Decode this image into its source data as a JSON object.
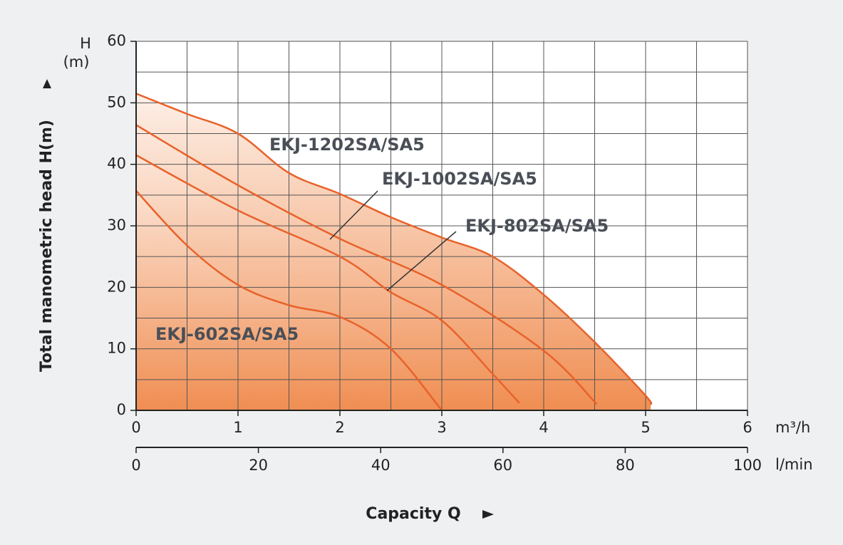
{
  "chart_data": {
    "type": "line",
    "y_unit_symbol": "H",
    "y_unit": "(m)",
    "y_axis_label": "Total manometric head H(m)",
    "x_axis_label": "Capacity Q",
    "x_unit": "m³/h",
    "x2_unit": "l/min",
    "xlim": [
      0,
      6
    ],
    "xticks": [
      0,
      1,
      2,
      3,
      4,
      5,
      6
    ],
    "minor_xticks": [
      0.5,
      1.5,
      2.5,
      3.5,
      4.5,
      5.5
    ],
    "x2lim": [
      0,
      100
    ],
    "x2ticks": [
      0,
      20,
      40,
      60,
      80,
      100
    ],
    "ylim": [
      0,
      60
    ],
    "yticks": [
      0,
      10,
      20,
      30,
      40,
      50,
      60
    ],
    "minor_yticks": [
      5,
      15,
      25,
      35,
      45,
      55
    ],
    "grid": true,
    "series": [
      {
        "name": "EKJ-1202SA/SA5",
        "color": "#e8622a",
        "x": [
          0,
          0.5,
          1,
          1.5,
          2,
          2.5,
          3,
          3.5,
          4,
          4.5,
          5,
          5.05
        ],
        "values": [
          51.5,
          48.2,
          45,
          38.6,
          35.2,
          31.4,
          28.1,
          25,
          18.8,
          11.1,
          2.4,
          0.9
        ]
      },
      {
        "name": "EKJ-1002SA/SA5",
        "color": "#e8622a",
        "x": [
          0,
          1,
          2,
          3,
          4,
          4.52
        ],
        "values": [
          46.4,
          36.6,
          27.9,
          20.4,
          9.7,
          1.0
        ]
      },
      {
        "name": "EKJ-802SA/SA5",
        "color": "#e8622a",
        "x": [
          0,
          1,
          2,
          2.5,
          3,
          3.5,
          3.76
        ],
        "values": [
          41.5,
          32.5,
          25,
          19.2,
          14.6,
          5.9,
          1.2
        ]
      },
      {
        "name": "EKJ-602SA/SA5",
        "color": "#e8622a",
        "x": [
          0,
          0.5,
          1,
          1.5,
          2,
          2.5,
          3
        ],
        "values": [
          35.7,
          26.8,
          20.4,
          17.1,
          15.2,
          10,
          0
        ]
      }
    ]
  }
}
